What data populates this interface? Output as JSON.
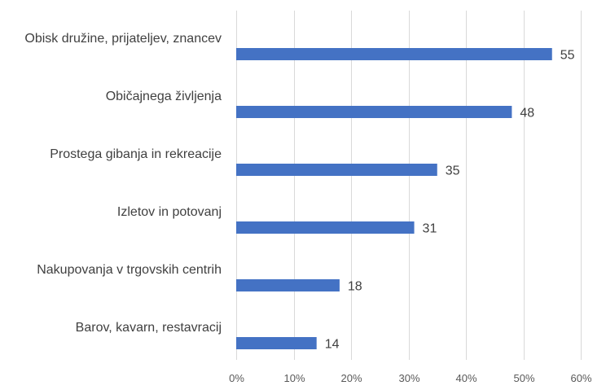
{
  "chart_data": {
    "type": "bar",
    "orientation": "horizontal",
    "categories": [
      "Obisk družine, prijateljev, znancev",
      "Običajnega življenja",
      "Prostega gibanja in rekreacije",
      "Izletov in potovanj",
      "Nakupovanja v trgovskih centrih",
      "Barov, kavarn, restavracij"
    ],
    "values": [
      55,
      48,
      35,
      31,
      18,
      14
    ],
    "value_labels": [
      "55",
      "48",
      "35",
      "31",
      "18",
      "14"
    ],
    "xlim": [
      0,
      60
    ],
    "x_ticks": [
      0,
      10,
      20,
      30,
      40,
      50,
      60
    ],
    "x_tick_labels": [
      "0%",
      "10%",
      "20%",
      "30%",
      "40%",
      "50%",
      "60%"
    ],
    "grid": true,
    "legend": "none",
    "bar_color": "#4472C4"
  }
}
